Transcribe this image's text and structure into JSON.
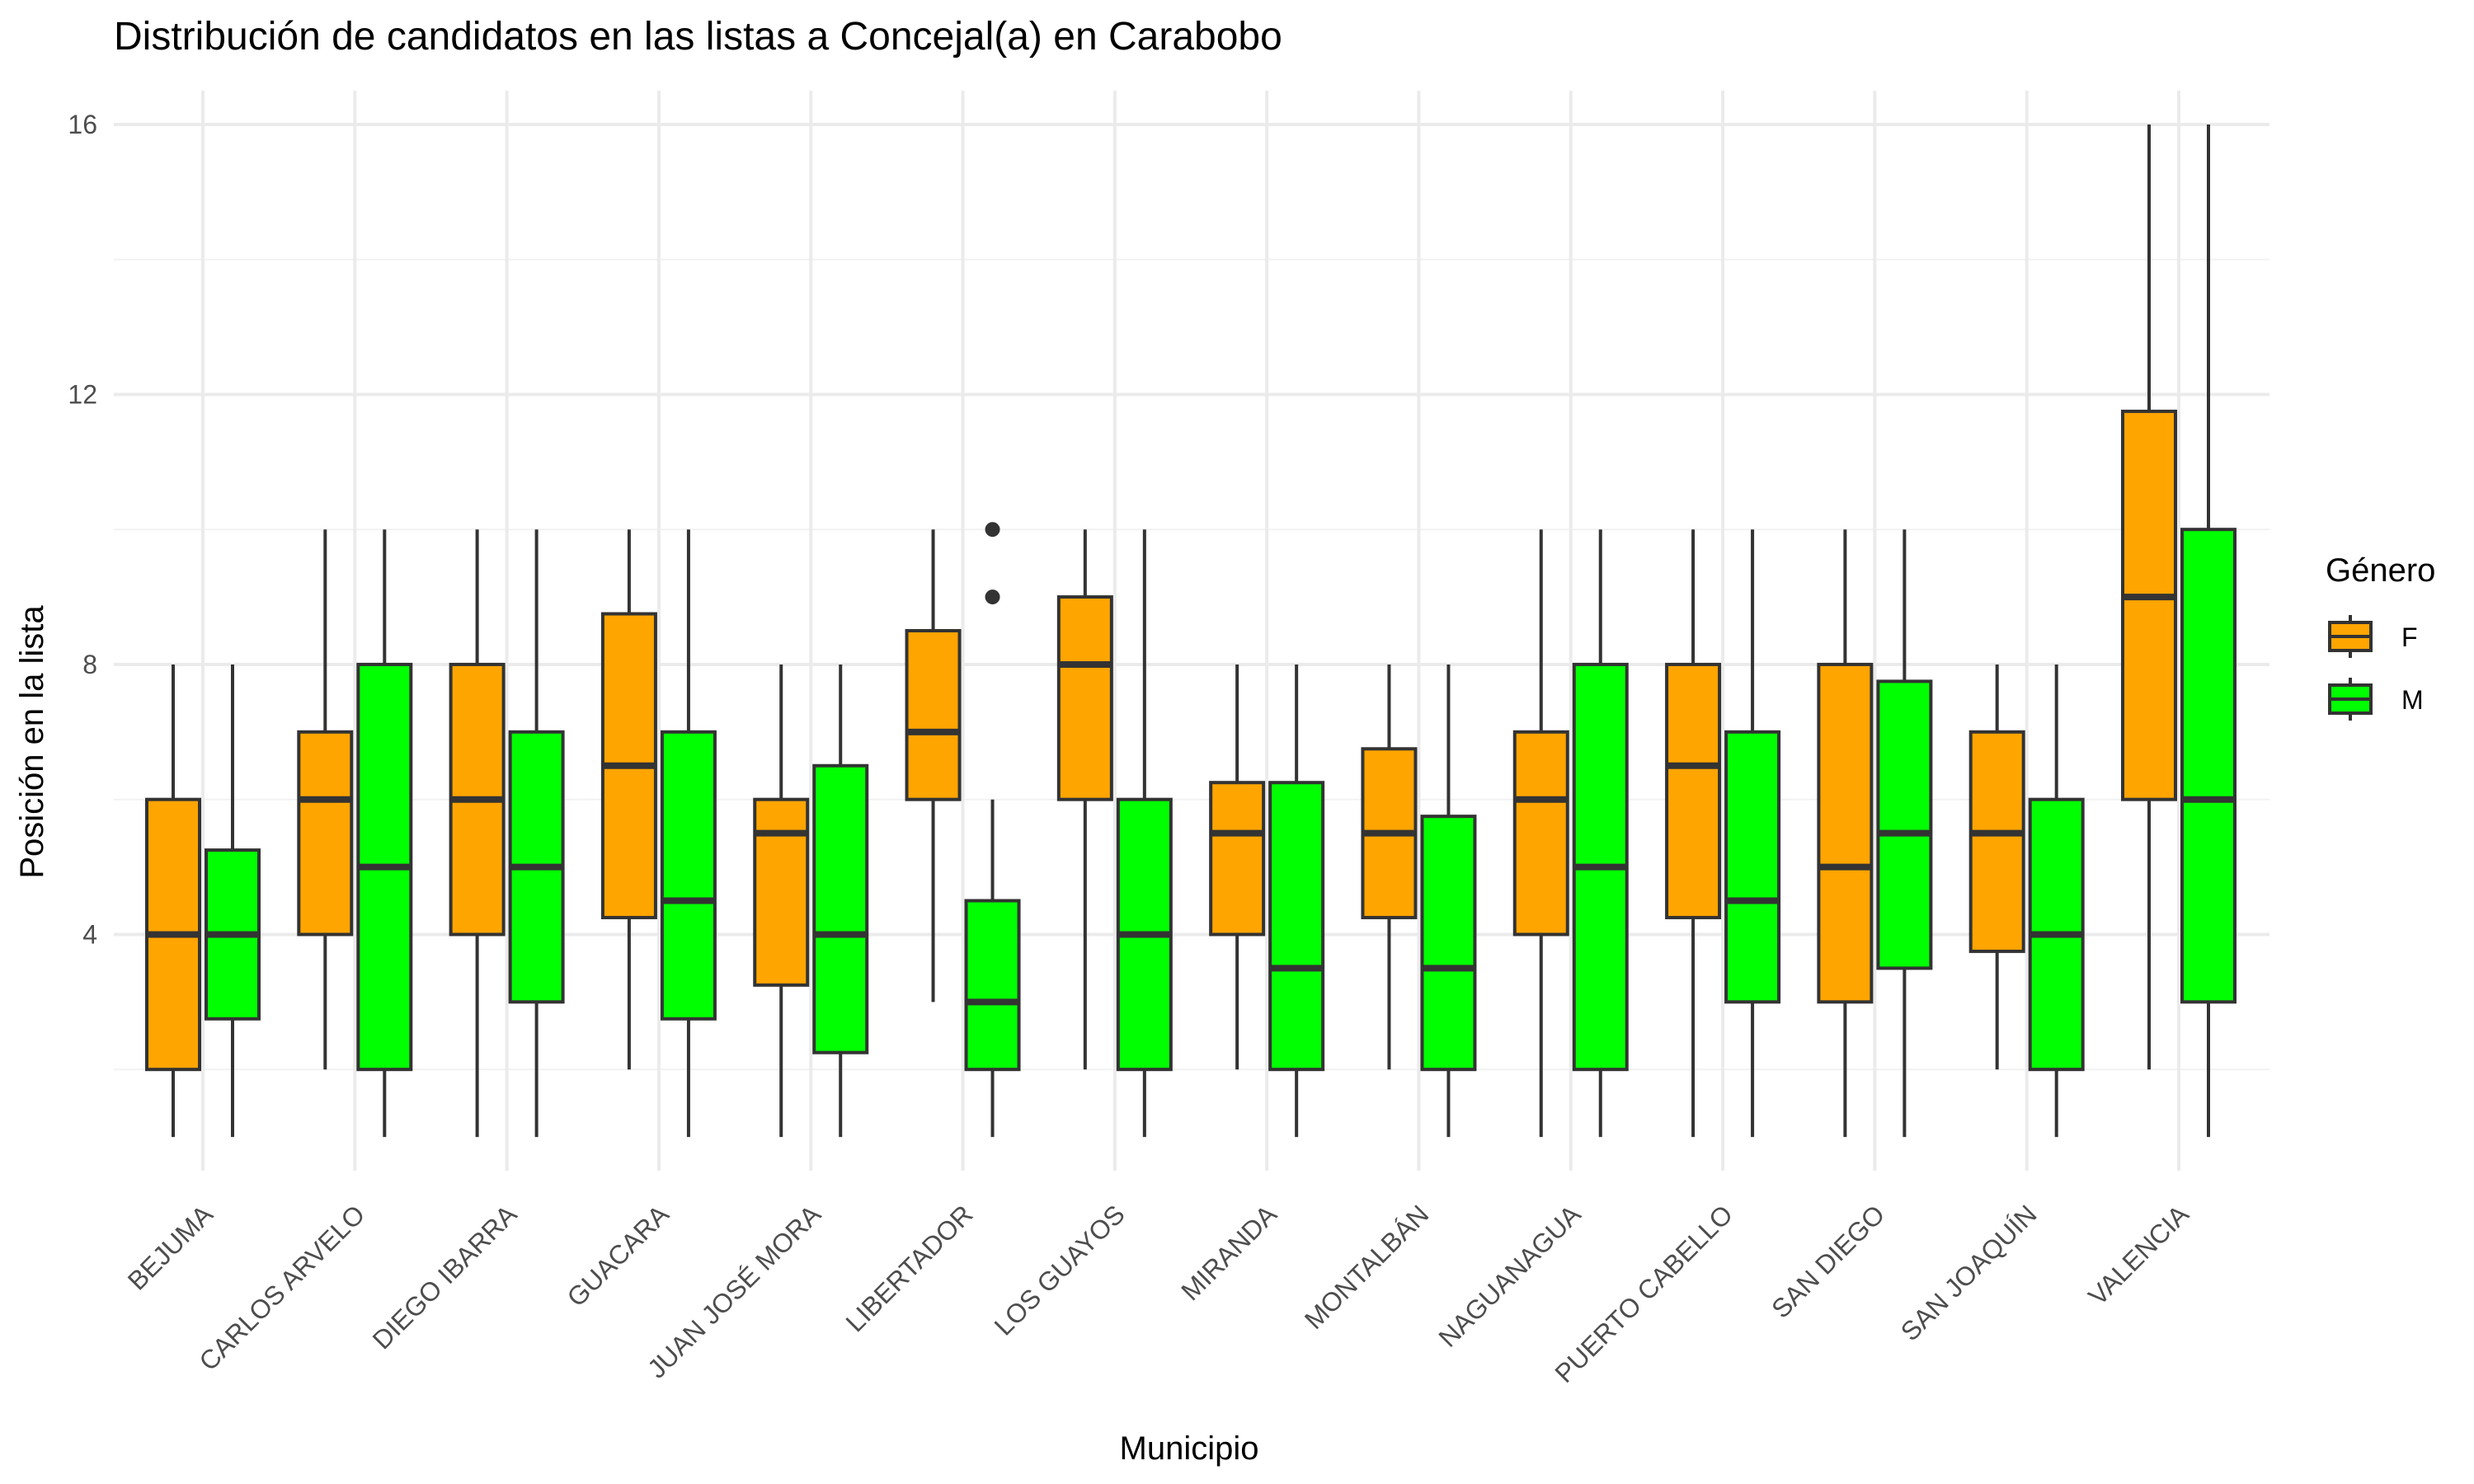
{
  "chart_data": {
    "type": "boxplot",
    "title": "Distribución de candidatos en las listas a Concejal(a) en Carabobo",
    "xlabel": "Municipio",
    "ylabel": "Posición en la lista",
    "ylim": [
      0.5,
      16.5
    ],
    "yticks": [
      4,
      8,
      12,
      16
    ],
    "grid": true,
    "legend": {
      "title": "Género",
      "position": "right",
      "entries": [
        {
          "key": "F",
          "label": "F",
          "color": "#FFA500"
        },
        {
          "key": "M",
          "label": "M",
          "color": "#00FF00"
        }
      ]
    },
    "categories": [
      "BEJUMA",
      "CARLOS ARVELO",
      "DIEGO IBARRA",
      "GUACARA",
      "JUAN JOSÉ MORA",
      "LIBERTADOR",
      "LOS GUAYOS",
      "MIRANDA",
      "MONTALBÁN",
      "NAGUANAGUA",
      "PUERTO CABELLO",
      "SAN DIEGO",
      "SAN JOAQUÍN",
      "VALENCIA"
    ],
    "series": [
      {
        "key": "F",
        "boxes": [
          {
            "min": 1,
            "q1": 2,
            "median": 4,
            "q3": 6,
            "max": 8,
            "outliers": []
          },
          {
            "min": 2,
            "q1": 4,
            "median": 6,
            "q3": 7,
            "max": 10,
            "outliers": []
          },
          {
            "min": 1,
            "q1": 4,
            "median": 6,
            "q3": 8,
            "max": 10,
            "outliers": []
          },
          {
            "min": 2,
            "q1": 4.25,
            "median": 6.5,
            "q3": 8.75,
            "max": 10,
            "outliers": []
          },
          {
            "min": 1,
            "q1": 3.25,
            "median": 5.5,
            "q3": 6,
            "max": 8,
            "outliers": []
          },
          {
            "min": 3,
            "q1": 6,
            "median": 7,
            "q3": 8.5,
            "max": 10,
            "outliers": []
          },
          {
            "min": 2,
            "q1": 6,
            "median": 8,
            "q3": 9,
            "max": 10,
            "outliers": []
          },
          {
            "min": 2,
            "q1": 4,
            "median": 5.5,
            "q3": 6.25,
            "max": 8,
            "outliers": []
          },
          {
            "min": 2,
            "q1": 4.25,
            "median": 5.5,
            "q3": 6.75,
            "max": 8,
            "outliers": []
          },
          {
            "min": 1,
            "q1": 4,
            "median": 6,
            "q3": 7,
            "max": 10,
            "outliers": []
          },
          {
            "min": 1,
            "q1": 4.25,
            "median": 6.5,
            "q3": 8,
            "max": 10,
            "outliers": []
          },
          {
            "min": 1,
            "q1": 3,
            "median": 5,
            "q3": 8,
            "max": 10,
            "outliers": []
          },
          {
            "min": 2,
            "q1": 3.75,
            "median": 5.5,
            "q3": 7,
            "max": 8,
            "outliers": []
          },
          {
            "min": 2,
            "q1": 6,
            "median": 9,
            "q3": 11.75,
            "max": 16,
            "outliers": []
          }
        ]
      },
      {
        "key": "M",
        "boxes": [
          {
            "min": 1,
            "q1": 2.75,
            "median": 4,
            "q3": 5.25,
            "max": 8,
            "outliers": []
          },
          {
            "min": 1,
            "q1": 2,
            "median": 5,
            "q3": 8,
            "max": 10,
            "outliers": []
          },
          {
            "min": 1,
            "q1": 3,
            "median": 5,
            "q3": 7,
            "max": 10,
            "outliers": []
          },
          {
            "min": 1,
            "q1": 2.75,
            "median": 4.5,
            "q3": 7,
            "max": 10,
            "outliers": []
          },
          {
            "min": 1,
            "q1": 2.25,
            "median": 4,
            "q3": 6.5,
            "max": 8,
            "outliers": []
          },
          {
            "min": 1,
            "q1": 2,
            "median": 3,
            "q3": 4.5,
            "max": 6,
            "outliers": [
              9,
              10
            ]
          },
          {
            "min": 1,
            "q1": 2,
            "median": 4,
            "q3": 6,
            "max": 10,
            "outliers": []
          },
          {
            "min": 1,
            "q1": 2,
            "median": 3.5,
            "q3": 6.25,
            "max": 8,
            "outliers": []
          },
          {
            "min": 1,
            "q1": 2,
            "median": 3.5,
            "q3": 5.75,
            "max": 8,
            "outliers": []
          },
          {
            "min": 1,
            "q1": 2,
            "median": 5,
            "q3": 8,
            "max": 10,
            "outliers": []
          },
          {
            "min": 1,
            "q1": 3,
            "median": 4.5,
            "q3": 7,
            "max": 10,
            "outliers": []
          },
          {
            "min": 1,
            "q1": 3.5,
            "median": 5.5,
            "q3": 7.75,
            "max": 10,
            "outliers": []
          },
          {
            "min": 1,
            "q1": 2,
            "median": 4,
            "q3": 6,
            "max": 8,
            "outliers": []
          },
          {
            "min": 1,
            "q1": 3,
            "median": 6,
            "q3": 10,
            "max": 16,
            "outliers": []
          }
        ]
      }
    ]
  }
}
